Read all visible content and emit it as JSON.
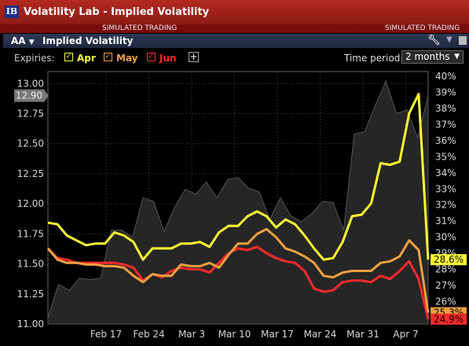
{
  "window": {
    "title": "Volatility Lab - Implied Volatility",
    "logo": "IB",
    "simulated_left": "SIMULATED TRADING",
    "simulated_right": "SIMULATED TRADING"
  },
  "panel": {
    "symbol": "AA",
    "title": "Implied Volatility"
  },
  "controls": {
    "expiries_label": "Expiries:",
    "expiries": [
      {
        "label": "Apr",
        "color": "#ffff33",
        "checked": true
      },
      {
        "label": "May",
        "color": "#f0a040",
        "checked": true
      },
      {
        "label": "Jun",
        "color": "#ff2a2a",
        "checked": true
      }
    ],
    "time_period_label": "Time period:",
    "time_period_value": "2 months"
  },
  "chart_data": {
    "type": "line",
    "x_ticks": [
      "Feb 17",
      "Feb 24",
      "Mar 3",
      "Mar 10",
      "Mar 17",
      "Mar 24",
      "Mar 31",
      "Apr 7"
    ],
    "left_axis": {
      "ticks": [
        "13.00",
        "12.75",
        "12.50",
        "12.25",
        "12.00",
        "11.75",
        "11.50",
        "11.25",
        "11.00"
      ],
      "range": [
        11.0,
        13.1
      ],
      "current_label": "12.90",
      "current_value": 12.9
    },
    "right_axis": {
      "ticks": [
        "40%",
        "39%",
        "38%",
        "37%",
        "36%",
        "35%",
        "34%",
        "33%",
        "32%",
        "31%",
        "30%",
        "29%",
        "28%",
        "27%",
        "26%",
        "25%"
      ],
      "range_percent": [
        24.6,
        40.3
      ]
    },
    "price_area": {
      "name": "price",
      "color": "#3a3a3a",
      "values": [
        11.05,
        11.33,
        11.28,
        11.38,
        11.37,
        11.38,
        11.78,
        11.78,
        11.72,
        12.05,
        12.02,
        11.77,
        11.97,
        12.12,
        12.08,
        12.18,
        12.05,
        12.2,
        12.22,
        12.13,
        12.1,
        11.87,
        12.05,
        11.9,
        11.85,
        11.92,
        12.02,
        12.01,
        11.78,
        12.58,
        12.6,
        12.82,
        13.02,
        12.75,
        12.78,
        12.55,
        12.9
      ]
    },
    "series": [
      {
        "name": "Apr",
        "color": "#ffff33",
        "end_label": "28.6%",
        "values": [
          30.9,
          30.8,
          30.1,
          29.8,
          29.5,
          29.6,
          29.6,
          30.3,
          30.1,
          29.7,
          28.6,
          29.3,
          29.3,
          29.3,
          29.6,
          29.6,
          29.7,
          29.4,
          30.3,
          30.7,
          30.7,
          31.3,
          31.6,
          31.3,
          30.6,
          31.1,
          30.8,
          30.1,
          29.3,
          28.6,
          28.7,
          29.7,
          31.3,
          31.4,
          32.1,
          34.6,
          34.5,
          34.7,
          37.7,
          38.9,
          28.6
        ]
      },
      {
        "name": "May",
        "color": "#f0a040",
        "end_label": "25.3%",
        "values": [
          29.3,
          28.6,
          28.4,
          28.4,
          28.3,
          28.3,
          28.2,
          28.2,
          28.1,
          27.6,
          27.2,
          27.7,
          27.6,
          27.6,
          28.3,
          28.2,
          28.2,
          28.4,
          28.1,
          28.9,
          29.6,
          29.6,
          30.2,
          30.5,
          30.0,
          29.3,
          29.1,
          28.8,
          28.4,
          27.6,
          27.5,
          27.8,
          27.9,
          27.9,
          27.9,
          28.4,
          28.5,
          28.8,
          29.8,
          29.2,
          25.3
        ]
      },
      {
        "name": "Jun",
        "color": "#ff2a2a",
        "end_label": "24.9%",
        "values": [
          29.3,
          28.7,
          28.6,
          28.4,
          28.4,
          28.4,
          28.4,
          28.4,
          28.3,
          28.1,
          27.3,
          27.7,
          27.5,
          27.9,
          28.1,
          28.0,
          28.0,
          27.8,
          28.4,
          29.0,
          29.3,
          29.2,
          29.4,
          29.0,
          28.7,
          28.5,
          28.4,
          27.9,
          26.8,
          26.6,
          26.7,
          27.2,
          27.3,
          27.3,
          27.2,
          27.6,
          27.4,
          27.9,
          28.5,
          27.4,
          24.9
        ]
      }
    ],
    "grid": true
  }
}
